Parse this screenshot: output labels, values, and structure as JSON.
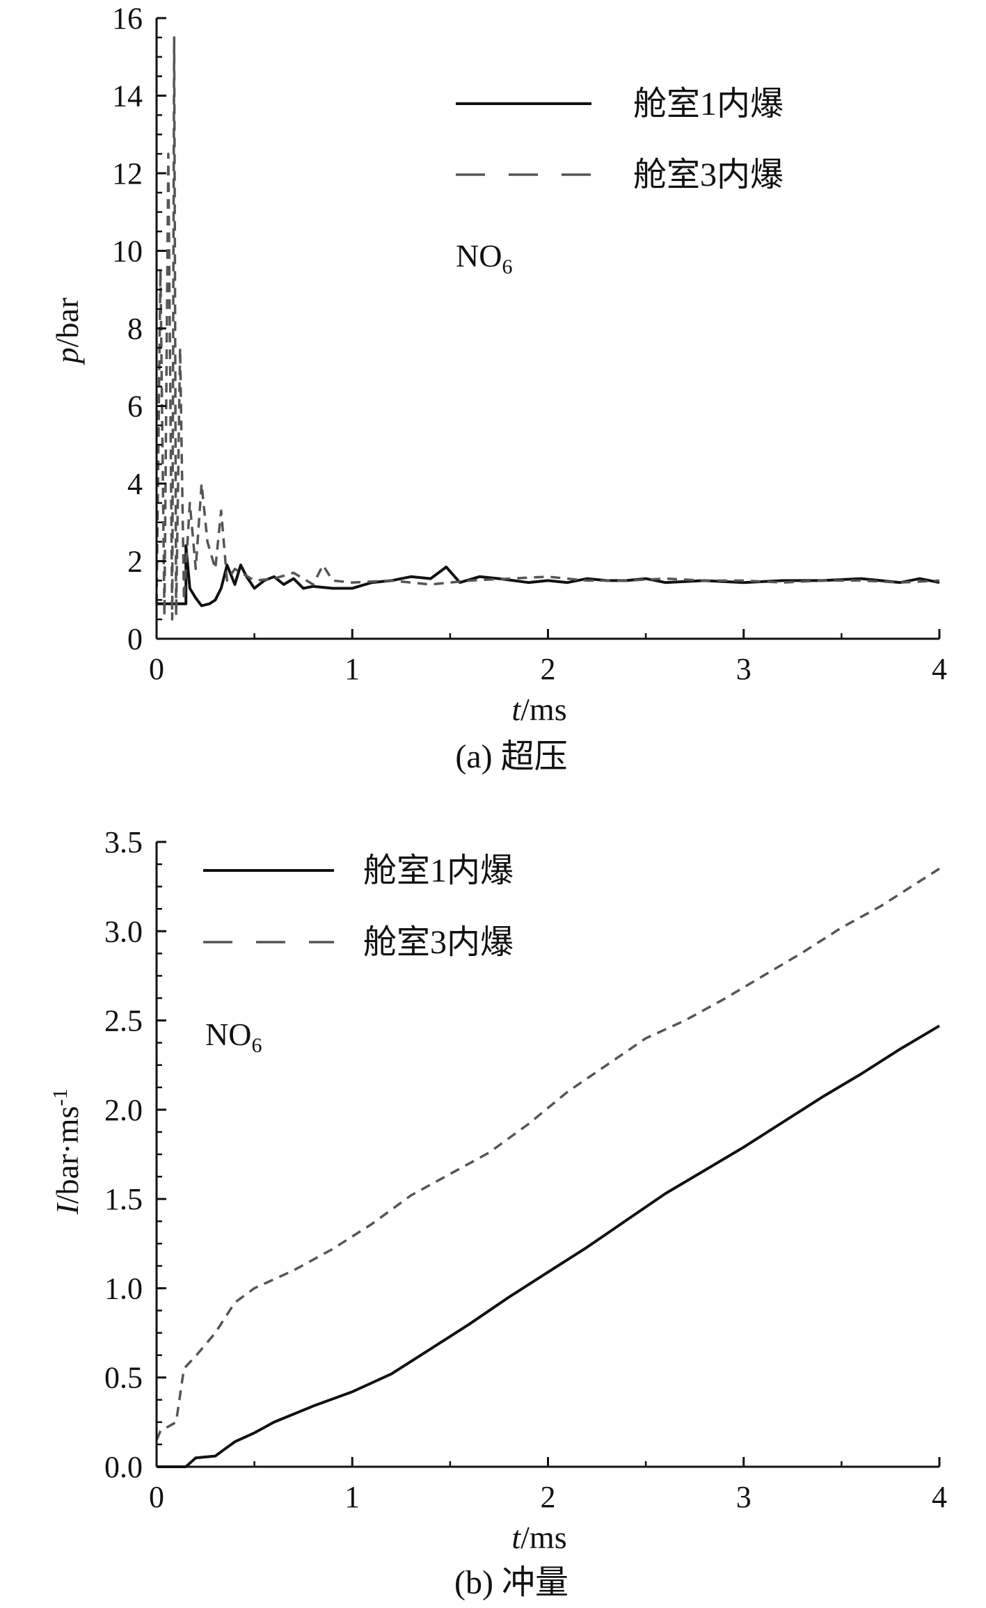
{
  "chart_data": [
    {
      "type": "line",
      "caption": "(a) 超压",
      "xlabel_var": "t",
      "xlabel_unit": "/ms",
      "ylabel_var": "p",
      "ylabel_unit": "/bar",
      "xlim": [
        0,
        4
      ],
      "ylim": [
        0,
        16
      ],
      "xticks": [
        "0",
        "1",
        "2",
        "3",
        "4"
      ],
      "yticks": [
        "0",
        "2",
        "4",
        "6",
        "8",
        "10",
        "12",
        "14",
        "16"
      ],
      "xtick_values": [
        0,
        1,
        2,
        3,
        4
      ],
      "ytick_values": [
        0,
        2,
        4,
        6,
        8,
        10,
        12,
        14,
        16
      ],
      "annotation": {
        "text": "NO",
        "sub": "6"
      },
      "legend_position": "top-right",
      "grid": false,
      "series": [
        {
          "name": "舱室1内爆",
          "style": "solid",
          "color": "#111111",
          "x": [
            0,
            0.15,
            0.15,
            0.17,
            0.2,
            0.23,
            0.27,
            0.3,
            0.33,
            0.36,
            0.4,
            0.43,
            0.46,
            0.5,
            0.55,
            0.6,
            0.65,
            0.7,
            0.75,
            0.8,
            0.9,
            1.0,
            1.1,
            1.2,
            1.3,
            1.4,
            1.48,
            1.55,
            1.65,
            1.75,
            1.9,
            2.0,
            2.1,
            2.2,
            2.3,
            2.4,
            2.5,
            2.6,
            2.8,
            3.0,
            3.2,
            3.4,
            3.6,
            3.8,
            3.9,
            4.0
          ],
          "y": [
            0.9,
            0.9,
            2.4,
            1.3,
            1.05,
            0.85,
            0.9,
            1.0,
            1.3,
            1.9,
            1.4,
            1.9,
            1.6,
            1.3,
            1.5,
            1.6,
            1.4,
            1.55,
            1.3,
            1.35,
            1.3,
            1.3,
            1.45,
            1.5,
            1.6,
            1.55,
            1.85,
            1.45,
            1.6,
            1.55,
            1.45,
            1.5,
            1.45,
            1.55,
            1.5,
            1.5,
            1.55,
            1.45,
            1.5,
            1.45,
            1.5,
            1.5,
            1.55,
            1.45,
            1.55,
            1.45
          ]
        },
        {
          "name": "舱室3内爆",
          "style": "dashed",
          "color": "#555555",
          "x": [
            0,
            0.02,
            0.04,
            0.06,
            0.08,
            0.09,
            0.1,
            0.12,
            0.14,
            0.17,
            0.2,
            0.23,
            0.26,
            0.3,
            0.33,
            0.36,
            0.4,
            0.5,
            0.6,
            0.7,
            0.8,
            0.85,
            0.9,
            1.0,
            1.2,
            1.4,
            1.6,
            1.8,
            2.0,
            2.2,
            2.4,
            2.6,
            2.8,
            3.0,
            3.2,
            3.4,
            3.6,
            3.8,
            4.0
          ],
          "y": [
            0.9,
            9.5,
            0.6,
            12.5,
            0.5,
            15.5,
            0.6,
            7.5,
            1.0,
            3.5,
            1.8,
            4.0,
            2.5,
            1.8,
            3.3,
            1.5,
            1.8,
            1.5,
            1.55,
            1.7,
            1.4,
            1.9,
            1.5,
            1.45,
            1.5,
            1.4,
            1.5,
            1.55,
            1.6,
            1.5,
            1.5,
            1.55,
            1.5,
            1.5,
            1.45,
            1.5,
            1.5,
            1.45,
            1.5
          ]
        }
      ]
    },
    {
      "type": "line",
      "caption": "(b) 冲量",
      "xlabel_var": "t",
      "xlabel_unit": "/ms",
      "ylabel_var": "I",
      "ylabel_unit": "/bar·ms",
      "ylabel_sup": "-1",
      "xlim": [
        0,
        4
      ],
      "ylim": [
        0,
        3.5
      ],
      "xticks": [
        "0",
        "1",
        "2",
        "3",
        "4"
      ],
      "yticks": [
        "0.0",
        "0.5",
        "1.0",
        "1.5",
        "2.0",
        "2.5",
        "3.0",
        "3.5"
      ],
      "xtick_values": [
        0,
        1,
        2,
        3,
        4
      ],
      "ytick_values": [
        0,
        0.5,
        1.0,
        1.5,
        2.0,
        2.5,
        3.0,
        3.5
      ],
      "annotation": {
        "text": "NO",
        "sub": "6"
      },
      "legend_position": "top-left",
      "grid": false,
      "series": [
        {
          "name": "舱室1内爆",
          "style": "solid",
          "color": "#111111",
          "x": [
            0,
            0.15,
            0.18,
            0.2,
            0.3,
            0.35,
            0.4,
            0.5,
            0.6,
            0.8,
            1.0,
            1.2,
            1.4,
            1.6,
            1.8,
            2.0,
            2.2,
            2.4,
            2.6,
            2.8,
            3.0,
            3.2,
            3.4,
            3.6,
            3.8,
            4.0
          ],
          "y": [
            0,
            0,
            0.03,
            0.05,
            0.06,
            0.1,
            0.14,
            0.19,
            0.25,
            0.34,
            0.42,
            0.52,
            0.66,
            0.8,
            0.95,
            1.09,
            1.23,
            1.38,
            1.53,
            1.66,
            1.79,
            1.93,
            2.07,
            2.2,
            2.34,
            2.47
          ]
        },
        {
          "name": "舱室3内爆",
          "style": "dashed",
          "color": "#555555",
          "x": [
            0,
            0.02,
            0.1,
            0.14,
            0.2,
            0.3,
            0.4,
            0.5,
            0.7,
            0.9,
            1.1,
            1.3,
            1.5,
            1.7,
            1.9,
            2.1,
            2.3,
            2.5,
            2.7,
            2.9,
            3.1,
            3.3,
            3.5,
            3.7,
            3.9,
            4.0
          ],
          "y": [
            0.15,
            0.2,
            0.25,
            0.55,
            0.62,
            0.75,
            0.92,
            1.0,
            1.1,
            1.22,
            1.36,
            1.52,
            1.64,
            1.76,
            1.92,
            2.1,
            2.25,
            2.4,
            2.5,
            2.62,
            2.75,
            2.88,
            3.02,
            3.14,
            3.28,
            3.35
          ]
        }
      ]
    }
  ]
}
